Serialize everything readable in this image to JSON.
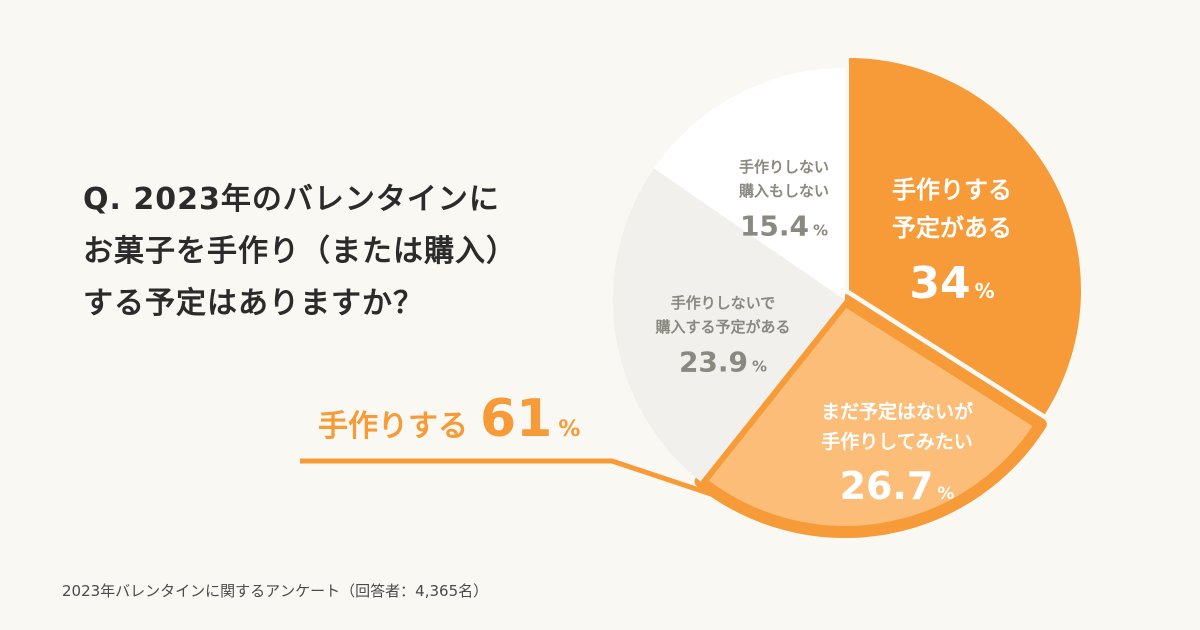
{
  "question": {
    "lines": [
      "Q. 2023年のバレンタインに",
      "お菓子を手作り（または購入）",
      "する予定はありますか？"
    ]
  },
  "footer": "2023年バレンタインに関するアンケート（回答者：4,365名）",
  "colors": {
    "background": "#f9f8f3",
    "accent_orange": "#f79a38",
    "light_orange": "#fbbd78",
    "light_gray": "#f1f0ed",
    "white": "#ffffff",
    "gray_text": "#8a8880",
    "dark_text": "#2b2b2b"
  },
  "callout": {
    "label": "手作りする",
    "value": "61",
    "unit": "%"
  },
  "chart_data": {
    "type": "pie",
    "title": "",
    "unit": "%",
    "slices": [
      {
        "lines": [
          "手作りする",
          "予定がある"
        ],
        "value": 34,
        "display": "34"
      },
      {
        "lines": [
          "まだ予定はないが",
          "手作りしてみたい"
        ],
        "value": 26.7,
        "display": "26.7"
      },
      {
        "lines": [
          "手作りしないで",
          "購入する予定がある"
        ],
        "value": 23.9,
        "display": "23.9"
      },
      {
        "lines": [
          "手作りしない",
          "購入もしない"
        ],
        "value": 15.4,
        "display": "15.4"
      }
    ]
  }
}
